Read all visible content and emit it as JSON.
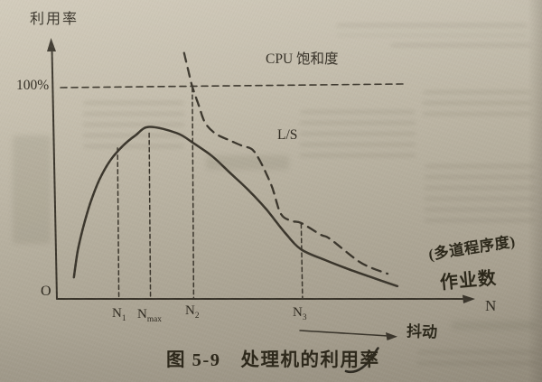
{
  "figure": {
    "y_axis_label": "利用率",
    "hundred_percent": "100%",
    "cpu_saturation_label": "CPU 饱和度",
    "ls_label": "L/S",
    "origin_label": "O",
    "x_axis_label": "N",
    "x_ticks": [
      {
        "base": "N",
        "sub": "1"
      },
      {
        "base": "N",
        "sub": "max"
      },
      {
        "base": "N",
        "sub": "2"
      },
      {
        "base": "N",
        "sub": "3"
      }
    ],
    "thrashing_label": "抖动",
    "handwritten_note_line1": "(多道程序度)",
    "handwritten_note_line2": "作业数",
    "caption": "图 5-9　处理机的利用率"
  },
  "chart_data": {
    "type": "line",
    "title": "图 5-9 处理机的利用率",
    "xlabel": "N（作业数 / 多道程序度）",
    "ylabel": "利用率",
    "ylim_percent": [
      0,
      120
    ],
    "grid": false,
    "reference_line": {
      "label": "CPU 饱和度",
      "value_percent": 100,
      "style": "dashed"
    },
    "x_ticks": [
      {
        "label": "N1",
        "rel": 0.143,
        "top_percent": 71
      },
      {
        "label": "Nmax",
        "rel": 0.22,
        "top_percent": 78
      },
      {
        "label": "N2",
        "rel": 0.325,
        "top_percent": 99.5
      },
      {
        "label": "N3",
        "rel": 0.59,
        "top_percent": 35
      }
    ],
    "series": [
      {
        "name": "处理机利用率",
        "style": "solid",
        "points": [
          [
            0.037,
            9.8
          ],
          [
            0.046,
            22
          ],
          [
            0.059,
            33
          ],
          [
            0.077,
            45
          ],
          [
            0.099,
            56
          ],
          [
            0.125,
            65
          ],
          [
            0.156,
            72
          ],
          [
            0.187,
            77
          ],
          [
            0.22,
            81
          ],
          [
            0.288,
            78
          ],
          [
            0.33,
            73
          ],
          [
            0.374,
            67
          ],
          [
            0.418,
            59
          ],
          [
            0.462,
            51
          ],
          [
            0.505,
            42
          ],
          [
            0.55,
            31
          ],
          [
            0.59,
            23
          ],
          [
            0.648,
            18
          ],
          [
            0.7,
            14
          ],
          [
            0.758,
            10
          ],
          [
            0.824,
            5.6
          ]
        ]
      },
      {
        "name": "L/S",
        "style": "dashed",
        "points": [
          [
            0.305,
            116
          ],
          [
            0.316,
            107
          ],
          [
            0.325,
            100
          ],
          [
            0.341,
            91
          ],
          [
            0.356,
            83
          ],
          [
            0.38,
            78
          ],
          [
            0.411,
            75
          ],
          [
            0.446,
            72
          ],
          [
            0.477,
            69
          ],
          [
            0.516,
            54
          ],
          [
            0.54,
            40
          ],
          [
            0.567,
            36.5
          ],
          [
            0.59,
            35.5
          ],
          [
            0.637,
            30
          ],
          [
            0.66,
            28
          ],
          [
            0.725,
            18
          ],
          [
            0.758,
            14.5
          ],
          [
            0.8,
            11.5
          ]
        ]
      }
    ],
    "annotations": [
      "抖动",
      "(多道程序度)",
      "作业数"
    ]
  }
}
